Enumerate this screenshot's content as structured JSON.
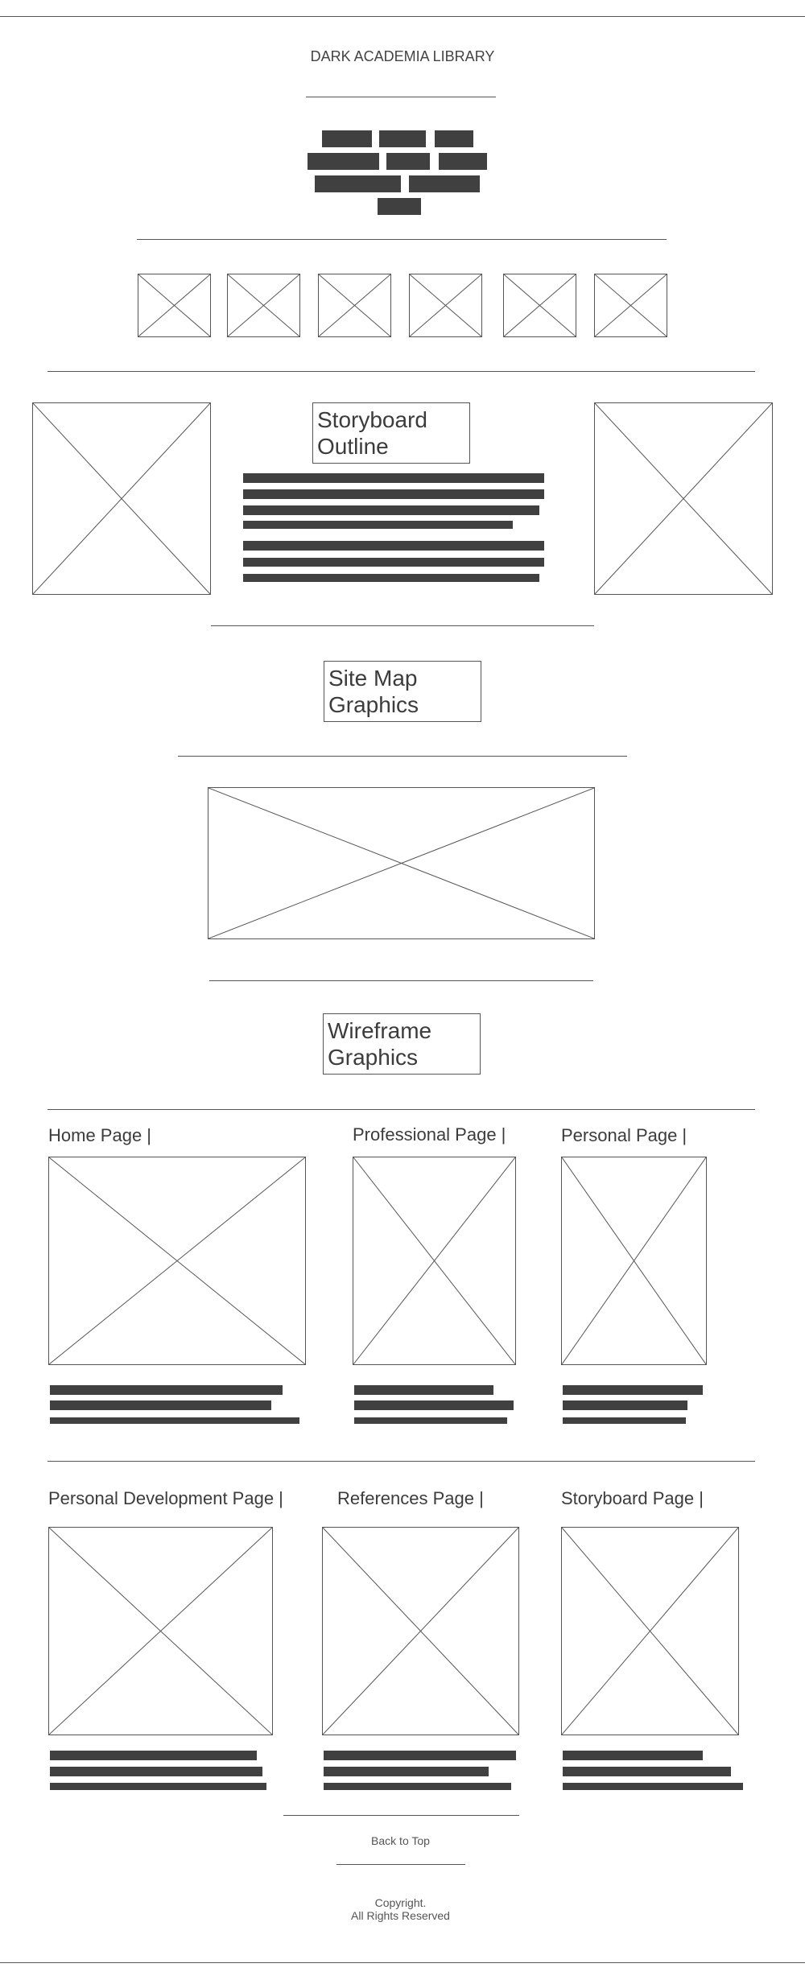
{
  "header": {
    "site_title": "DARK ACADEMIA LIBRARY"
  },
  "sections": {
    "storyboard_title": "Storyboard Outline",
    "sitemap_title": "Site Map Graphics",
    "wireframe_title": "Wireframe Graphics"
  },
  "wireframes": {
    "row1": [
      {
        "label": "Home Page |"
      },
      {
        "label": "Professional Page |"
      },
      {
        "label": "Personal Page |"
      }
    ],
    "row2": [
      {
        "label": "Personal Development Page |"
      },
      {
        "label": "References Page |"
      },
      {
        "label": "Storyboard Page |"
      }
    ]
  },
  "footer": {
    "back_to_top": "Back to Top",
    "copyright_line1": "Copyright.",
    "copyright_line2": "All Rights Reserved"
  }
}
